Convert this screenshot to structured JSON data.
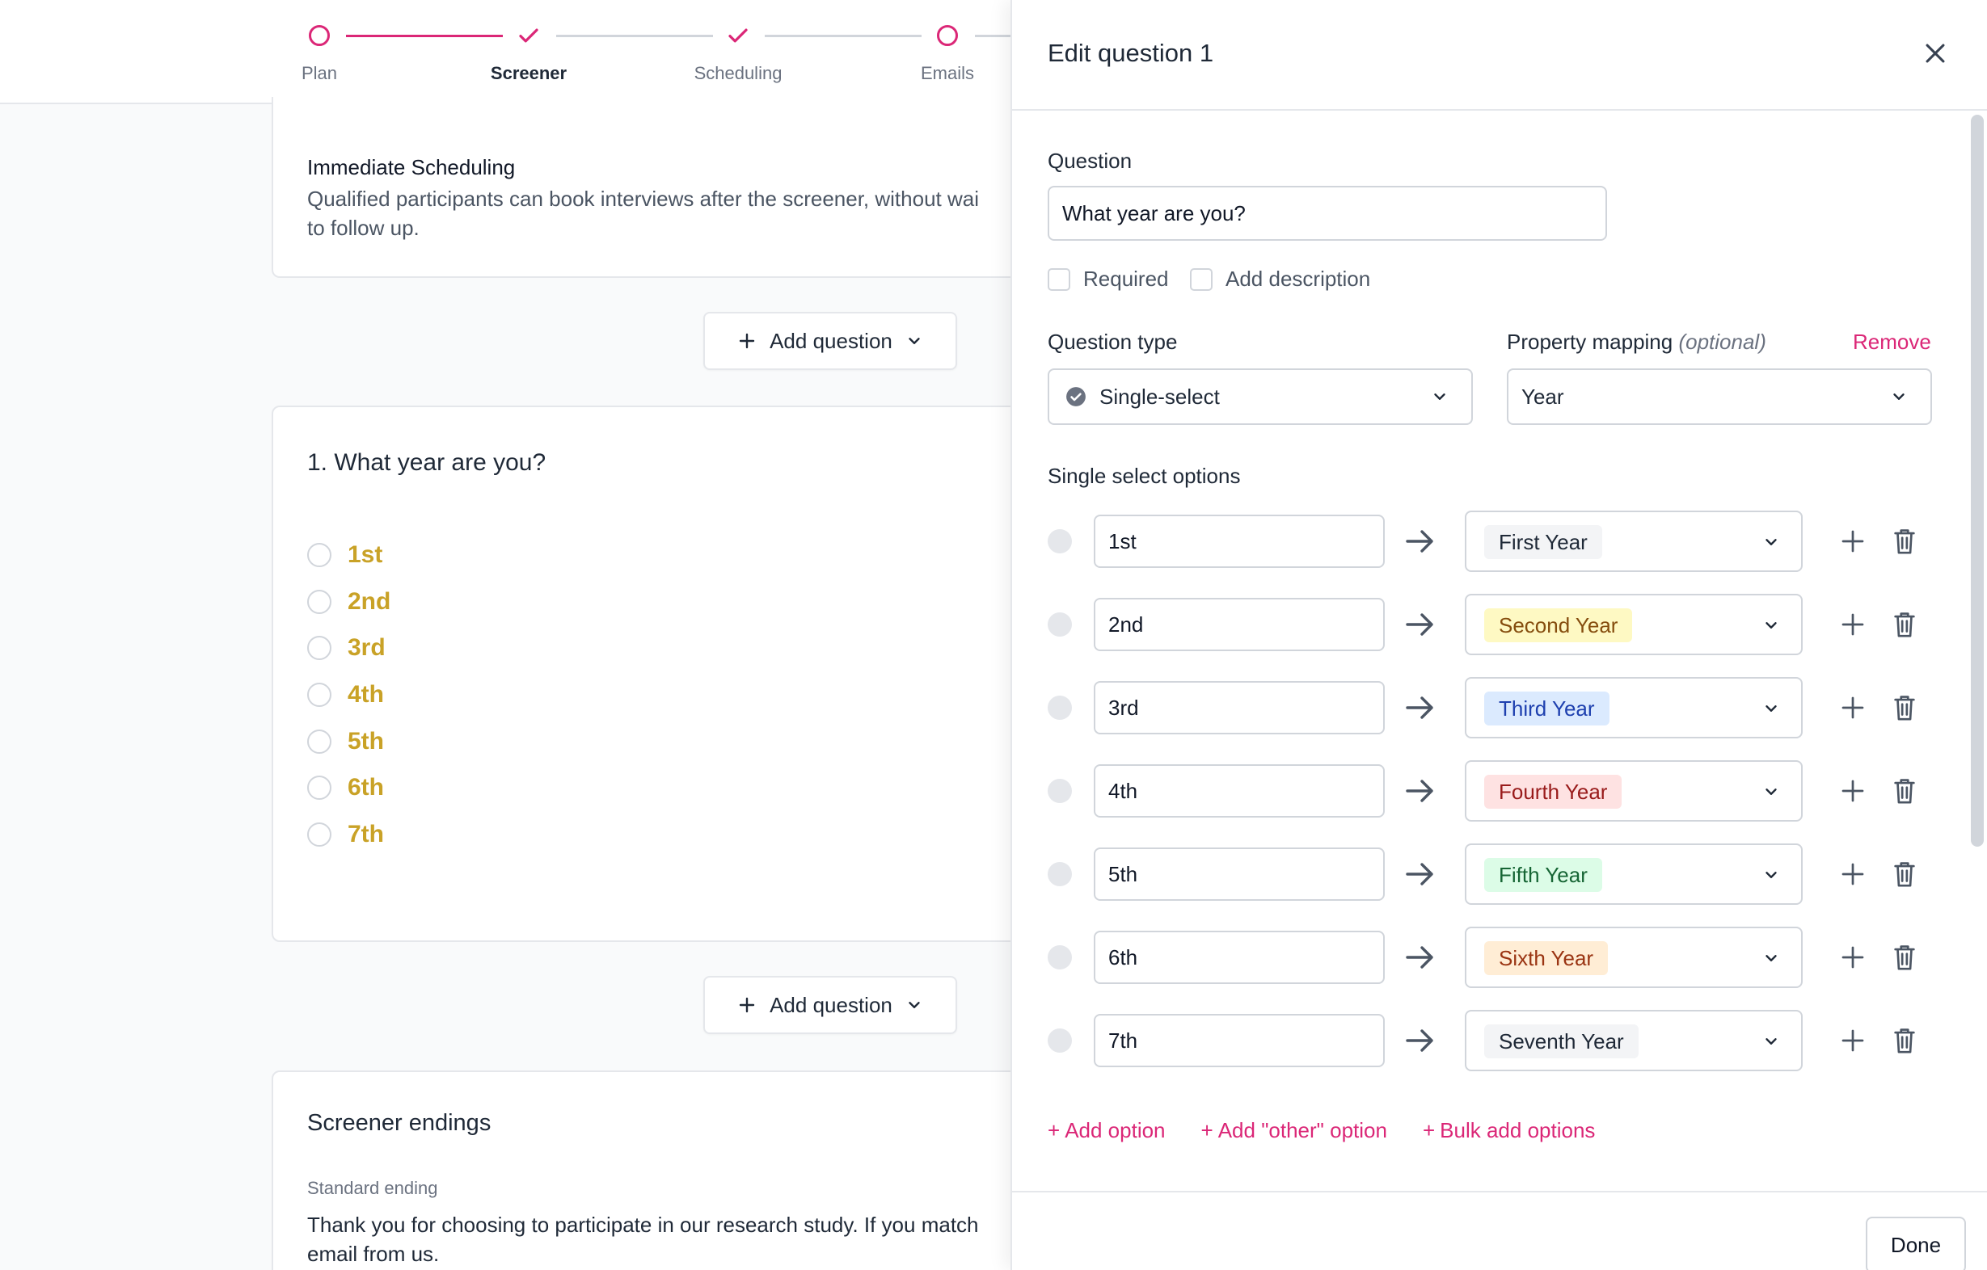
{
  "stepper": {
    "steps": [
      {
        "label": "Plan",
        "state": "current"
      },
      {
        "label": "Screener",
        "state": "done"
      },
      {
        "label": "Scheduling",
        "state": "done"
      },
      {
        "label": "Emails",
        "state": "current"
      }
    ]
  },
  "scheduling_card": {
    "title": "Immediate Scheduling",
    "body_line1": "Qualified participants can book interviews after the screener, without wai",
    "body_line2": "to follow up."
  },
  "add_question_label": "Add question",
  "question_card": {
    "title": "1. What year are you?",
    "options": [
      "1st",
      "2nd",
      "3rd",
      "4th",
      "5th",
      "6th",
      "7th"
    ]
  },
  "endings_card": {
    "title": "Screener endings",
    "subtitle": "Standard ending",
    "body_line1": "Thank you for choosing to participate in our research study. If you match",
    "body_line2": "email from us."
  },
  "drawer": {
    "title": "Edit question 1",
    "question_label": "Question",
    "question_value": "What year are you?",
    "required_label": "Required",
    "add_description_label": "Add description",
    "question_type_label": "Question type",
    "question_type_value": "Single-select",
    "property_mapping_label": "Property mapping",
    "property_mapping_optional": "(optional)",
    "remove_label": "Remove",
    "property_mapping_value": "Year",
    "options_label": "Single select options",
    "mappings": [
      {
        "option": "1st",
        "property": "First Year",
        "chip_bg": "#f3f4f6",
        "chip_fg": "#1f2937"
      },
      {
        "option": "2nd",
        "property": "Second Year",
        "chip_bg": "#fef9c3",
        "chip_fg": "#854d0e"
      },
      {
        "option": "3rd",
        "property": "Third Year",
        "chip_bg": "#dbeafe",
        "chip_fg": "#1e40af"
      },
      {
        "option": "4th",
        "property": "Fourth Year",
        "chip_bg": "#fee2e2",
        "chip_fg": "#991b1b"
      },
      {
        "option": "5th",
        "property": "Fifth Year",
        "chip_bg": "#dcfce7",
        "chip_fg": "#166534"
      },
      {
        "option": "6th",
        "property": "Sixth Year",
        "chip_bg": "#ffedd5",
        "chip_fg": "#9a3412"
      },
      {
        "option": "7th",
        "property": "Seventh Year",
        "chip_bg": "#f3f4f6",
        "chip_fg": "#1f2937"
      }
    ],
    "add_option_label": "Add option",
    "add_other_option_label": "Add \"other\" option",
    "bulk_add_label": "Bulk add options",
    "done_label": "Done"
  },
  "colors": {
    "accent": "#db2777",
    "option_text": "#c9a227"
  }
}
